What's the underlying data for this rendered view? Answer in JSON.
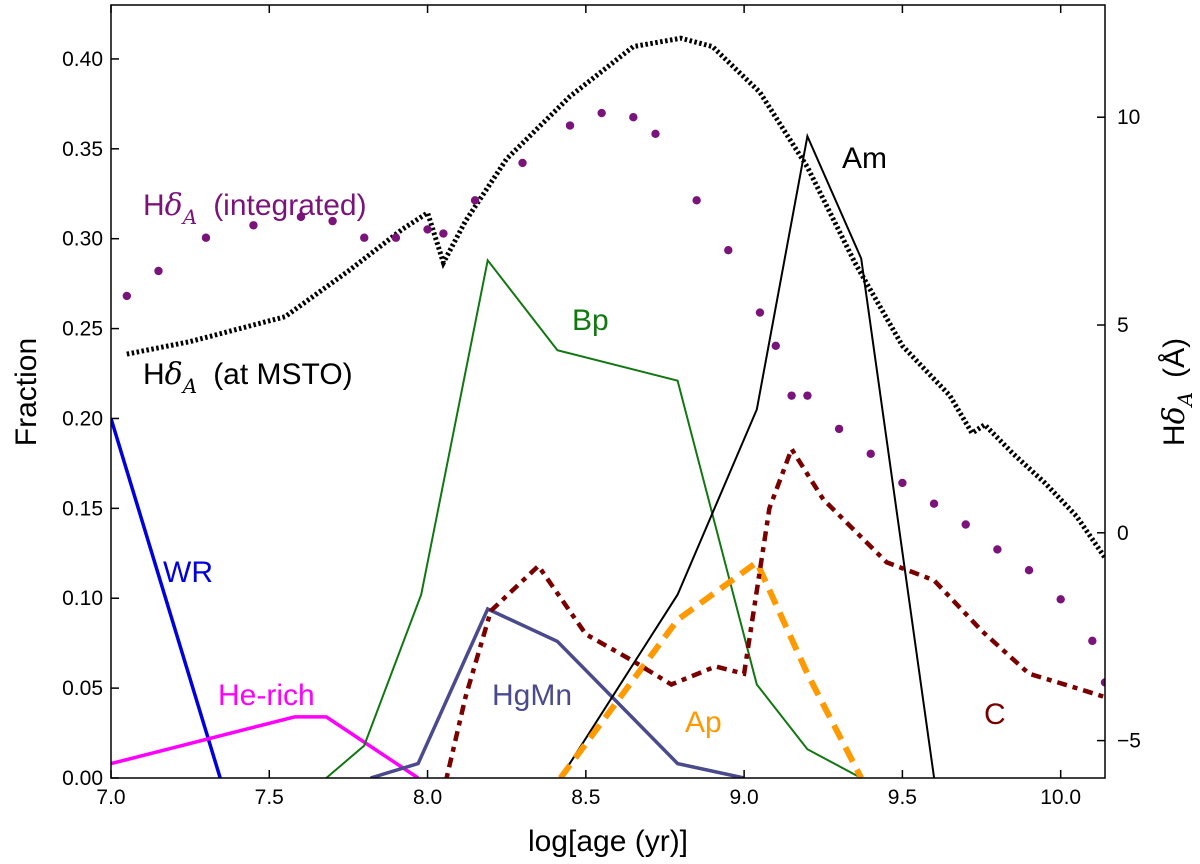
{
  "chart_data": {
    "type": "line",
    "xlabel": "log[age (yr)]",
    "ylabel": "Fraction",
    "ylabel_right_prefix": "H",
    "ylabel_right_symbol": "δ",
    "ylabel_right_sub": "A",
    "ylabel_right_unit": "(Å)",
    "xlim": [
      7.0,
      10.14
    ],
    "ylim": [
      0.0,
      0.43
    ],
    "ylim_right": [
      -5.9,
      12.7
    ],
    "x_ticks": [
      "7.0",
      "7.5",
      "8.0",
      "8.5",
      "9.0",
      "9.5",
      "10.0"
    ],
    "y_ticks": [
      "0.00",
      "0.05",
      "0.10",
      "0.15",
      "0.20",
      "0.25",
      "0.30",
      "0.35",
      "0.40"
    ],
    "y_right_ticks": [
      "−5",
      "0",
      "5",
      "10"
    ],
    "grid": false,
    "series": [
      {
        "name": "WR",
        "axis": "left",
        "color": "#0000dd",
        "style": "solid-thick",
        "points": [
          [
            7.0,
            0.2
          ],
          [
            7.345,
            0.0
          ]
        ]
      },
      {
        "name": "He-rich",
        "axis": "left",
        "color": "#ff00ff",
        "style": "solid-thick",
        "points": [
          [
            7.0,
            0.008
          ],
          [
            7.58,
            0.034
          ],
          [
            7.68,
            0.034
          ],
          [
            7.97,
            0.0
          ]
        ]
      },
      {
        "name": "HgMn",
        "axis": "left",
        "color": "#4a4a8c",
        "style": "solid-thick",
        "points": [
          [
            7.82,
            0.0
          ],
          [
            7.97,
            0.008
          ],
          [
            8.19,
            0.094
          ],
          [
            8.41,
            0.076
          ],
          [
            8.79,
            0.008
          ],
          [
            9.0,
            0.0
          ]
        ]
      },
      {
        "name": "Bp",
        "axis": "left",
        "color": "#117711",
        "style": "solid-thin",
        "points": [
          [
            7.68,
            0.0
          ],
          [
            7.8,
            0.018
          ],
          [
            7.98,
            0.102
          ],
          [
            8.19,
            0.288
          ],
          [
            8.41,
            0.238
          ],
          [
            8.79,
            0.221
          ],
          [
            9.04,
            0.052
          ],
          [
            9.2,
            0.016
          ],
          [
            9.37,
            0.0
          ]
        ]
      },
      {
        "name": "Am",
        "axis": "left",
        "color": "#000000",
        "style": "solid-thin",
        "points": [
          [
            8.42,
            0.0
          ],
          [
            8.79,
            0.102
          ],
          [
            9.04,
            0.205
          ],
          [
            9.2,
            0.357
          ],
          [
            9.37,
            0.289
          ],
          [
            9.6,
            0.0
          ]
        ]
      },
      {
        "name": "Ap",
        "axis": "left",
        "color": "#ff9900",
        "style": "dashed",
        "points": [
          [
            8.42,
            0.0
          ],
          [
            8.79,
            0.088
          ],
          [
            9.04,
            0.12
          ],
          [
            9.2,
            0.058
          ],
          [
            9.37,
            0.0
          ]
        ]
      },
      {
        "name": "C",
        "axis": "left",
        "color": "#7a0000",
        "style": "dashdot",
        "points": [
          [
            8.06,
            0.0
          ],
          [
            8.12,
            0.045
          ],
          [
            8.2,
            0.093
          ],
          [
            8.35,
            0.118
          ],
          [
            8.5,
            0.08
          ],
          [
            8.65,
            0.065
          ],
          [
            8.77,
            0.052
          ],
          [
            8.91,
            0.062
          ],
          [
            9.0,
            0.058
          ],
          [
            9.08,
            0.15
          ],
          [
            9.15,
            0.183
          ],
          [
            9.25,
            0.155
          ],
          [
            9.45,
            0.12
          ],
          [
            9.6,
            0.11
          ],
          [
            9.75,
            0.082
          ],
          [
            9.9,
            0.058
          ],
          [
            10.05,
            0.05
          ],
          [
            10.14,
            0.045
          ]
        ]
      },
      {
        "name": "Hδ_A (at MSTO)",
        "axis": "right",
        "color": "#000000",
        "style": "dotted-thick",
        "points": [
          [
            7.05,
            4.3
          ],
          [
            7.25,
            4.6
          ],
          [
            7.55,
            5.2
          ],
          [
            7.75,
            6.3
          ],
          [
            7.92,
            7.3
          ],
          [
            8.0,
            7.7
          ],
          [
            8.05,
            6.5
          ],
          [
            8.12,
            7.5
          ],
          [
            8.25,
            9.0
          ],
          [
            8.45,
            10.5
          ],
          [
            8.65,
            11.7
          ],
          [
            8.8,
            11.9
          ],
          [
            8.9,
            11.7
          ],
          [
            9.05,
            10.6
          ],
          [
            9.2,
            8.8
          ],
          [
            9.35,
            6.5
          ],
          [
            9.5,
            4.5
          ],
          [
            9.65,
            3.3
          ],
          [
            9.72,
            2.4
          ],
          [
            9.76,
            2.6
          ],
          [
            9.85,
            1.9
          ],
          [
            9.95,
            1.2
          ],
          [
            10.05,
            0.4
          ],
          [
            10.14,
            -0.6
          ]
        ]
      },
      {
        "name": "Hδ_A (integrated)",
        "axis": "right",
        "color": "#7a147a",
        "style": "dots",
        "points": [
          [
            7.05,
            5.7
          ],
          [
            7.15,
            6.3
          ],
          [
            7.3,
            7.1
          ],
          [
            7.45,
            7.4
          ],
          [
            7.6,
            7.6
          ],
          [
            7.7,
            7.5
          ],
          [
            7.8,
            7.1
          ],
          [
            7.9,
            7.1
          ],
          [
            8.0,
            7.3
          ],
          [
            8.05,
            7.2
          ],
          [
            8.15,
            8.0
          ],
          [
            8.3,
            8.9
          ],
          [
            8.45,
            9.8
          ],
          [
            8.55,
            10.1
          ],
          [
            8.65,
            10.0
          ],
          [
            8.72,
            9.6
          ],
          [
            8.85,
            8.0
          ],
          [
            8.95,
            6.8
          ],
          [
            9.05,
            5.3
          ],
          [
            9.1,
            4.5
          ],
          [
            9.15,
            3.3
          ],
          [
            9.2,
            3.3
          ],
          [
            9.3,
            2.5
          ],
          [
            9.4,
            1.9
          ],
          [
            9.5,
            1.2
          ],
          [
            9.6,
            0.7
          ],
          [
            9.7,
            0.2
          ],
          [
            9.8,
            -0.4
          ],
          [
            9.9,
            -0.9
          ],
          [
            10.0,
            -1.6
          ],
          [
            10.1,
            -2.6
          ],
          [
            10.14,
            -3.6
          ]
        ]
      }
    ],
    "labels": [
      {
        "series": "Hδ_A (integrated)",
        "main": "H",
        "sym": "δ",
        "sub": "A",
        "rest": "(integrated)",
        "color": "#7a147a"
      },
      {
        "series": "Hδ_A (at MSTO)",
        "main": "H",
        "sym": "δ",
        "sub": "A",
        "rest": "(at MSTO)",
        "color": "#000000"
      },
      {
        "series": "Bp",
        "text": "Bp",
        "color": "#117711"
      },
      {
        "series": "Am",
        "text": "Am",
        "color": "#000000"
      },
      {
        "series": "WR",
        "text": "WR",
        "color": "#0000dd"
      },
      {
        "series": "He-rich",
        "text": "He-rich",
        "color": "#ff00ff"
      },
      {
        "series": "HgMn",
        "text": "HgMn",
        "color": "#4a4a8c"
      },
      {
        "series": "Ap",
        "text": "Ap",
        "color": "#ff9900"
      },
      {
        "series": "C",
        "text": "C",
        "color": "#7a0000"
      }
    ]
  }
}
